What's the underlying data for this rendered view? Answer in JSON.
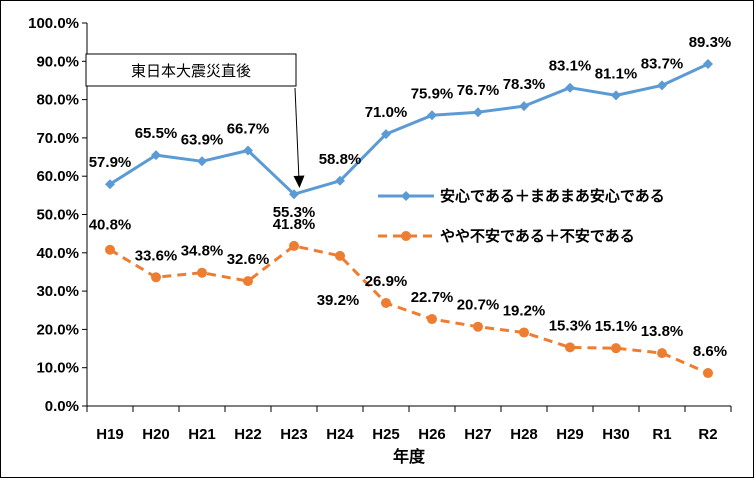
{
  "chart_data": {
    "type": "line",
    "title": "",
    "xlabel": "年度",
    "ylabel": "",
    "categories": [
      "H19",
      "H20",
      "H21",
      "H22",
      "H23",
      "H24",
      "H25",
      "H26",
      "H27",
      "H28",
      "H29",
      "H30",
      "R1",
      "R2"
    ],
    "ylim": [
      0,
      100
    ],
    "ytick_labels": [
      "0.0%",
      "10.0%",
      "20.0%",
      "30.0%",
      "40.0%",
      "50.0%",
      "60.0%",
      "70.0%",
      "80.0%",
      "90.0%",
      "100.0%"
    ],
    "grid": false,
    "legend_position": "right-middle",
    "series": [
      {
        "name": "安心である＋まあまあ安心である",
        "color": "#5B9BD5",
        "style": "solid",
        "marker": "diamond",
        "values": [
          57.9,
          65.5,
          63.9,
          66.7,
          55.3,
          58.8,
          71.0,
          75.9,
          76.7,
          78.3,
          83.1,
          81.1,
          83.7,
          89.3
        ],
        "labels": [
          "57.9%",
          "65.5%",
          "63.9%",
          "66.7%",
          "55.3%",
          "58.8%",
          "71.0%",
          "75.9%",
          "76.7%",
          "78.3%",
          "83.1%",
          "81.1%",
          "83.7%",
          "89.3%"
        ]
      },
      {
        "name": "やや不安である＋不安である",
        "color": "#ED7D31",
        "style": "dashed",
        "marker": "circle",
        "values": [
          40.8,
          33.6,
          34.8,
          32.6,
          41.8,
          39.2,
          26.9,
          22.7,
          20.7,
          19.2,
          15.3,
          15.1,
          13.8,
          8.6
        ],
        "labels": [
          "40.8%",
          "33.6%",
          "34.8%",
          "32.6%",
          "41.8%",
          "39.2%",
          "26.9%",
          "22.7%",
          "20.7%",
          "19.2%",
          "15.3%",
          "15.1%",
          "13.8%",
          "8.6%"
        ]
      }
    ],
    "annotation": {
      "text": "東日本大震災直後",
      "target_category": "H23"
    }
  }
}
